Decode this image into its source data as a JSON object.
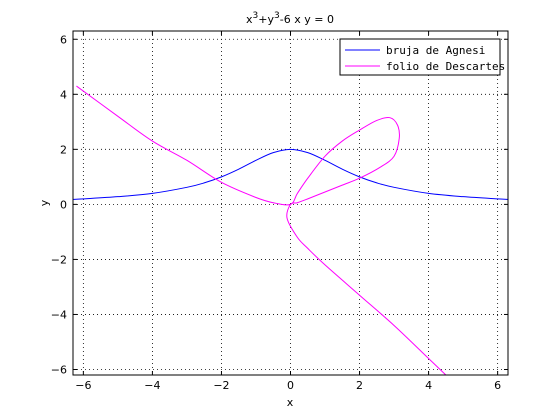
{
  "chart_data": {
    "type": "line",
    "title": {
      "base_a": "x",
      "sup_a": "3",
      "mid": "+y",
      "sup_b": "3",
      "rest": "-6 x y = 0"
    },
    "xlabel": "x",
    "ylabel": "y",
    "xlim": [
      -6.3,
      6.3
    ],
    "ylim": [
      -6.2,
      6.3
    ],
    "grid": true,
    "grid_style": "dotted",
    "legend_position": "top-right",
    "x_ticks": [
      -6,
      -4,
      -2,
      0,
      2,
      4,
      6
    ],
    "y_ticks": [
      -6,
      -4,
      -2,
      0,
      2,
      4,
      6
    ],
    "x_tick_labels": [
      "−6",
      "−4",
      "−2",
      "0",
      "2",
      "4",
      "6"
    ],
    "y_tick_labels": [
      "−6",
      "−4",
      "−2",
      "0",
      "2",
      "4",
      "6"
    ],
    "series": [
      {
        "name": "bruja de Agnesi",
        "color": "#0000ff",
        "x": [
          -6.3,
          -6,
          -5,
          -4,
          -3,
          -2.5,
          -2,
          -1.5,
          -1,
          -0.5,
          0,
          0.5,
          1,
          1.5,
          2,
          2.5,
          3,
          4,
          5,
          6,
          6.3
        ],
        "y": [
          0.18,
          0.2,
          0.28,
          0.4,
          0.62,
          0.78,
          1.0,
          1.28,
          1.6,
          1.88,
          2.0,
          1.88,
          1.6,
          1.28,
          1.0,
          0.78,
          0.62,
          0.4,
          0.28,
          0.2,
          0.18
        ]
      },
      {
        "name": "folio de Descartes",
        "color": "#ff00ff",
        "x": [
          -6.2,
          -5,
          -4,
          -3,
          -2,
          -1,
          -0.5,
          0,
          0.2,
          0.5,
          1,
          1.5,
          2,
          2.5,
          2.88,
          3.1,
          3.15,
          3.0,
          2.6,
          2.0,
          1.5,
          1.0,
          0.5,
          0.2,
          0,
          -0.1,
          0.2,
          0.5,
          1,
          2,
          3,
          4,
          4.5
        ],
        "y": [
          4.3,
          3.2,
          2.3,
          1.6,
          0.8,
          0.25,
          0.06,
          0.0,
          0.4,
          0.95,
          1.75,
          2.3,
          2.7,
          3.05,
          3.15,
          2.88,
          2.4,
          1.75,
          1.35,
          0.95,
          0.7,
          0.45,
          0.2,
          0.06,
          0.0,
          -0.5,
          -1.2,
          -1.6,
          -2.2,
          -3.3,
          -4.4,
          -5.6,
          -6.2
        ]
      }
    ]
  }
}
